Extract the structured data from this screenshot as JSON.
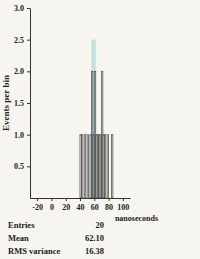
{
  "chart_data": {
    "type": "histogram",
    "x_label": "nanoseconds",
    "y_label": "Events per bin",
    "bins": [
      38,
      40,
      42,
      44,
      46,
      48,
      50,
      52,
      54,
      56,
      58,
      60,
      62,
      64,
      66,
      68,
      70,
      72,
      74,
      76,
      78,
      80,
      82,
      84,
      86,
      88,
      90
    ],
    "values": [
      0,
      1,
      1,
      0,
      1,
      0,
      1,
      0,
      1,
      2,
      1,
      2,
      1,
      1,
      1,
      1,
      2,
      1,
      1,
      0,
      1,
      0,
      0,
      1,
      0,
      0
    ],
    "color": "#555555",
    "highlight": {
      "x0": 56,
      "x1": 62,
      "height": 2.5,
      "color": "#a8dcd6"
    },
    "xlim": [
      -30,
      110
    ],
    "xticks": [
      -20,
      0,
      20,
      40,
      60,
      80,
      100
    ],
    "ylim": [
      0,
      3
    ],
    "yticks": [
      0.5,
      {
        "value": 1,
        "label": "1.0"
      },
      1.5,
      {
        "value": 2,
        "label": "2.0"
      },
      2.5,
      {
        "value": 3,
        "label": "3.0"
      }
    ],
    "stats": [
      {
        "name": "Entries",
        "value": 20
      },
      {
        "name": "Mean",
        "value": 62.1,
        "label": "62.10"
      },
      {
        "name": "RMS variance",
        "value": 16.38
      }
    ]
  }
}
